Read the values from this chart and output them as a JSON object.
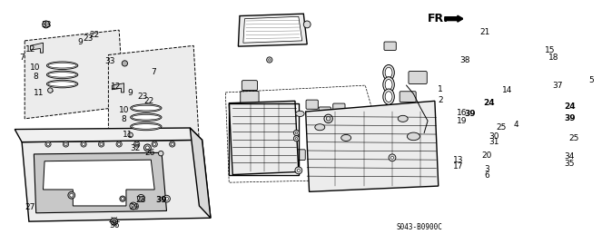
{
  "bg_color": "#ffffff",
  "diagram_code": "S043-B0900C",
  "fr_label": "FR.",
  "label_fontsize": 6.5,
  "bold_labels": [
    "24",
    "39"
  ],
  "labels_left": [
    [
      "33",
      52,
      22
    ],
    [
      "9",
      100,
      47
    ],
    [
      "23",
      111,
      42
    ],
    [
      "22",
      120,
      37
    ],
    [
      "7",
      18,
      68
    ],
    [
      "12",
      28,
      57
    ],
    [
      "10",
      35,
      82
    ],
    [
      "8",
      35,
      95
    ],
    [
      "11",
      40,
      118
    ],
    [
      "33",
      138,
      73
    ],
    [
      "7",
      197,
      88
    ],
    [
      "9",
      168,
      118
    ],
    [
      "12",
      148,
      110
    ],
    [
      "23",
      184,
      124
    ],
    [
      "22",
      193,
      130
    ],
    [
      "10",
      158,
      143
    ],
    [
      "8",
      158,
      155
    ],
    [
      "11",
      163,
      177
    ],
    [
      "32",
      175,
      196
    ],
    [
      "26",
      193,
      201
    ],
    [
      "27",
      30,
      278
    ],
    [
      "28",
      182,
      270
    ],
    [
      "29",
      174,
      278
    ],
    [
      "39",
      212,
      270
    ],
    [
      "36",
      150,
      303
    ]
  ],
  "labels_right": [
    [
      "21",
      348,
      32
    ],
    [
      "38",
      299,
      88
    ],
    [
      "1",
      265,
      114
    ],
    [
      "2",
      263,
      130
    ],
    [
      "15",
      432,
      58
    ],
    [
      "18",
      437,
      68
    ],
    [
      "37",
      449,
      107
    ],
    [
      "5",
      504,
      101
    ],
    [
      "14",
      370,
      115
    ],
    [
      "16",
      313,
      147
    ],
    [
      "19",
      313,
      157
    ],
    [
      "39",
      332,
      148
    ],
    [
      "24",
      358,
      132
    ],
    [
      "13",
      308,
      213
    ],
    [
      "17",
      308,
      222
    ],
    [
      "20",
      354,
      207
    ],
    [
      "30",
      364,
      180
    ],
    [
      "31",
      364,
      188
    ],
    [
      "25",
      374,
      165
    ],
    [
      "4",
      394,
      163
    ],
    [
      "3",
      354,
      226
    ],
    [
      "6",
      354,
      235
    ],
    [
      "24",
      469,
      136
    ],
    [
      "39",
      467,
      154
    ],
    [
      "25",
      479,
      182
    ],
    [
      "34",
      466,
      208
    ],
    [
      "35",
      466,
      217
    ]
  ]
}
